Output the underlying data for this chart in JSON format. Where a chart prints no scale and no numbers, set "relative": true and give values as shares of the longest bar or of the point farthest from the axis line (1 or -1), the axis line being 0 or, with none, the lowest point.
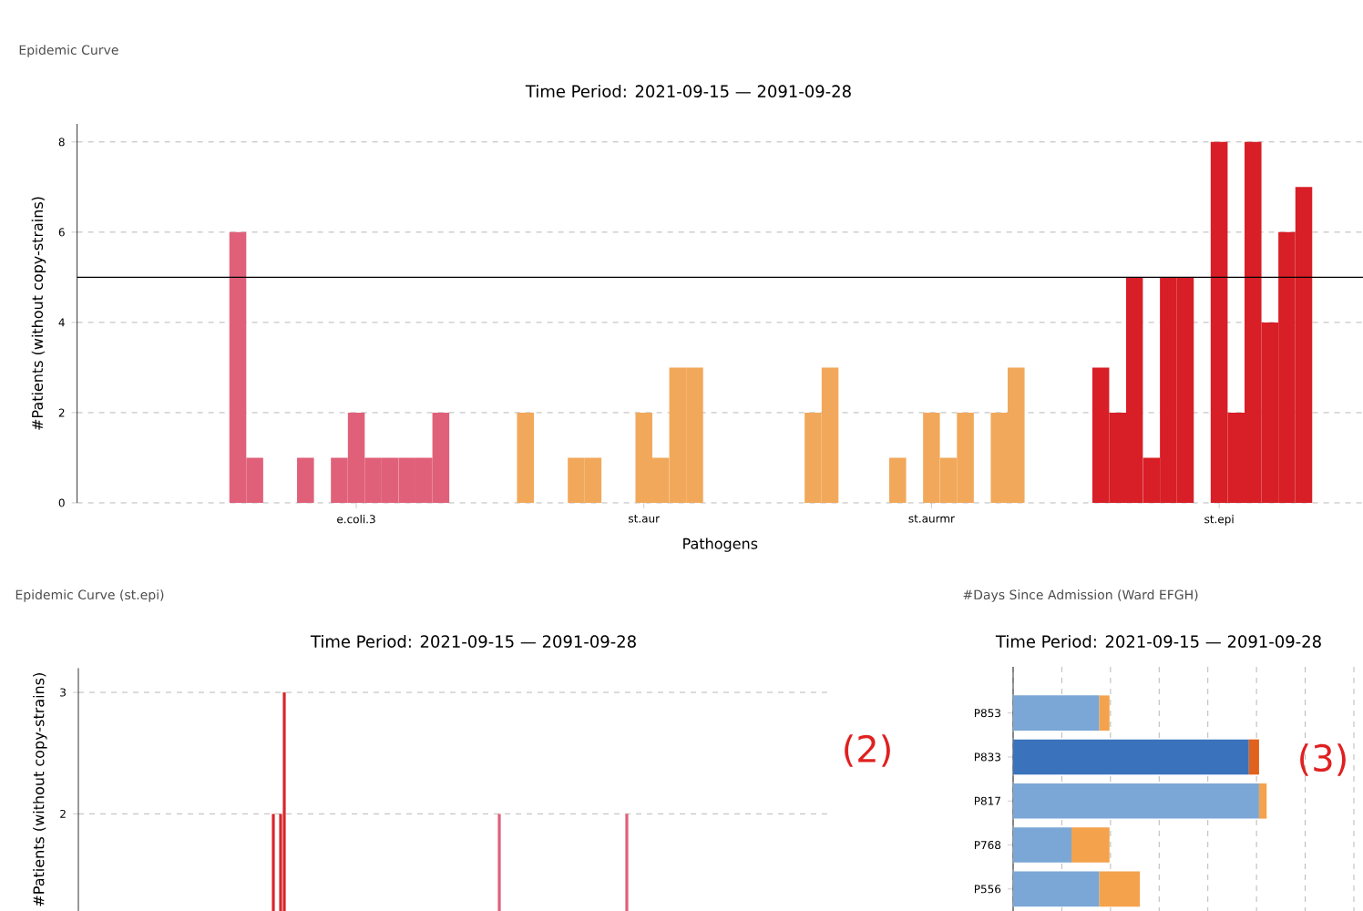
{
  "chart_data": [
    {
      "type": "bar",
      "title": "Epidemic Curve",
      "subtitle": "Time Period: 2021-09-15 — 2091-09-28",
      "xlabel": "Pathogens",
      "ylabel": "#Patients (without copy-strains)",
      "categories": [
        null,
        null,
        null,
        null,
        null,
        null,
        null,
        null,
        null,
        null,
        null,
        null,
        null,
        null,
        null,
        null,
        "e.coli.3",
        null,
        null,
        null,
        null,
        null,
        null,
        null,
        null,
        null,
        null,
        null,
        null,
        null,
        null,
        null,
        null,
        "st.aur",
        null,
        null,
        null,
        null,
        null,
        null,
        null,
        null,
        null,
        null,
        null,
        null,
        null,
        null,
        null,
        null,
        "st.aurmr",
        null,
        null,
        null,
        null,
        null,
        null,
        null,
        null,
        null,
        null,
        null,
        null,
        null,
        null,
        null,
        null,
        "st.epi",
        null,
        null,
        null,
        null,
        null,
        null,
        null,
        null
      ],
      "values": [
        null,
        null,
        null,
        null,
        null,
        null,
        null,
        null,
        null,
        6,
        1,
        0,
        0,
        1,
        0,
        1,
        2,
        1,
        1,
        1,
        1,
        2,
        0,
        null,
        null,
        null,
        2,
        0,
        0,
        1,
        1,
        0,
        0,
        2,
        1,
        3,
        3,
        0,
        0,
        0,
        null,
        null,
        null,
        2,
        3,
        0,
        0,
        0,
        1,
        0,
        2,
        1,
        2,
        0,
        2,
        3,
        0,
        null,
        null,
        null,
        3,
        2,
        5,
        1,
        5,
        5,
        0,
        8,
        2,
        8,
        4,
        6,
        7,
        0,
        null,
        null
      ],
      "colors": [
        null,
        null,
        null,
        null,
        null,
        null,
        null,
        null,
        null,
        "#e0607a",
        "#e0607a",
        "#e0607a",
        "#e0607a",
        "#e0607a",
        "#e0607a",
        "#e0607a",
        "#e0607a",
        "#e0607a",
        "#e0607a",
        "#e0607a",
        "#e0607a",
        "#e0607a",
        "#e0607a",
        null,
        null,
        null,
        "#f2a85a",
        "#f2a85a",
        "#f2a85a",
        "#f2a85a",
        "#f2a85a",
        "#f2a85a",
        "#f2a85a",
        "#f2a85a",
        "#f2a85a",
        "#f2a85a",
        "#f2a85a",
        "#f2a85a",
        "#f2a85a",
        "#f2a85a",
        null,
        null,
        null,
        "#f2a85a",
        "#f2a85a",
        "#f2a85a",
        "#f2a85a",
        "#f2a85a",
        "#f2a85a",
        "#f2a85a",
        "#f2a85a",
        "#f2a85a",
        "#f2a85a",
        "#f2a85a",
        "#f2a85a",
        "#f2a85a",
        "#f2a85a",
        null,
        null,
        null,
        "#d81e26",
        "#d81e26",
        "#d81e26",
        "#d81e26",
        "#d81e26",
        "#d81e26",
        "#d81e26",
        "#d81e26",
        "#d81e26",
        "#d81e26",
        "#d81e26",
        "#d81e26",
        "#d81e26",
        "#d81e26",
        null,
        null
      ],
      "ylim": [
        0,
        8.4
      ],
      "yticks": [
        0,
        2,
        4,
        6,
        8
      ],
      "grid": "y",
      "ref_lines": [
        {
          "axis": "y",
          "value": 5
        }
      ]
    },
    {
      "type": "bar",
      "title": "Epidemic Curve (st.epi)",
      "subtitle": "Time Period: 2021-09-15 — 2091-09-28",
      "ylabel": "#Patients (without copy-strains)",
      "categories": [
        null,
        null,
        null,
        null,
        null,
        null,
        null,
        null,
        null,
        null,
        null,
        null,
        null,
        null,
        null,
        null,
        null,
        null,
        null,
        null,
        null,
        null,
        null,
        null,
        null,
        null,
        null,
        null,
        null,
        null,
        null,
        null,
        null,
        null,
        null,
        null,
        null,
        null,
        null,
        null,
        null,
        null,
        null,
        null,
        null,
        null,
        null,
        null,
        null,
        null,
        null,
        null,
        null,
        null,
        null,
        null,
        null,
        null,
        null,
        null,
        null,
        null,
        null,
        null,
        null,
        null,
        null,
        null,
        null,
        null,
        null,
        null,
        null,
        null,
        null,
        null,
        null,
        null,
        null,
        null,
        null,
        null,
        null,
        null,
        null,
        null,
        null,
        null,
        null,
        null,
        null,
        null,
        null,
        null,
        null,
        null,
        null,
        null,
        null,
        null,
        null,
        null,
        null,
        null,
        null,
        null,
        null,
        null,
        null,
        null,
        null,
        null,
        null,
        null,
        null,
        null,
        null,
        null,
        null,
        null,
        null,
        null,
        null,
        null,
        null,
        null,
        null,
        null,
        null,
        null,
        null,
        null,
        null,
        null,
        null,
        null,
        null,
        null,
        null,
        null,
        null,
        null,
        null,
        null,
        null,
        null,
        null,
        null,
        null,
        null,
        null,
        null,
        null,
        null,
        null,
        null,
        null,
        null,
        null,
        null,
        null,
        null,
        null,
        null,
        null,
        null,
        null,
        null,
        null,
        null,
        null,
        null,
        null,
        null,
        null,
        null,
        null,
        null,
        null,
        null,
        null,
        null,
        null,
        null,
        null,
        null,
        null,
        null,
        null,
        null,
        null,
        null,
        null,
        null,
        null,
        null,
        null,
        null,
        null,
        null,
        null,
        null,
        null,
        null,
        null,
        null,
        null
      ],
      "values": [
        null,
        null,
        null,
        null,
        null,
        null,
        null,
        null,
        null,
        null,
        null,
        null,
        null,
        null,
        null,
        null,
        null,
        null,
        null,
        null,
        null,
        null,
        null,
        null,
        null,
        null,
        null,
        null,
        null,
        null,
        null,
        null,
        null,
        null,
        null,
        null,
        null,
        null,
        null,
        null,
        null,
        null,
        null,
        null,
        null,
        null,
        null,
        null,
        null,
        null,
        null,
        null,
        null,
        2,
        null,
        2,
        3,
        null,
        null,
        null,
        null,
        null,
        null,
        null,
        null,
        null,
        null,
        null,
        null,
        null,
        null,
        null,
        null,
        null,
        null,
        null,
        null,
        null,
        null,
        null,
        null,
        null,
        null,
        null,
        null,
        null,
        null,
        null,
        null,
        null,
        null,
        null,
        null,
        null,
        null,
        null,
        null,
        null,
        null,
        null,
        null,
        null,
        null,
        null,
        null,
        null,
        null,
        null,
        null,
        null,
        null,
        null,
        null,
        null,
        null,
        2,
        null,
        null,
        null,
        null,
        null,
        null,
        null,
        null,
        null,
        null,
        null,
        null,
        null,
        null,
        null,
        null,
        null,
        null,
        null,
        null,
        null,
        null,
        null,
        null,
        null,
        null,
        null,
        null,
        null,
        null,
        null,
        null,
        null,
        null,
        2,
        null,
        null,
        null,
        null,
        null,
        null,
        null,
        null,
        null,
        null,
        null,
        null,
        null,
        null,
        null,
        null,
        null,
        null,
        null,
        null,
        null,
        null,
        null,
        null,
        null,
        null,
        null,
        null,
        null,
        null,
        null,
        null,
        null,
        null,
        null,
        null,
        null,
        null,
        null,
        null,
        null,
        null,
        null,
        null,
        null,
        null,
        null,
        null,
        null,
        null,
        null,
        null,
        null,
        null,
        null,
        null
      ],
      "colors": [
        null,
        null,
        null,
        null,
        null,
        null,
        null,
        null,
        null,
        null,
        null,
        null,
        null,
        null,
        null,
        null,
        null,
        null,
        null,
        null,
        null,
        null,
        null,
        null,
        null,
        null,
        null,
        null,
        null,
        null,
        null,
        null,
        null,
        null,
        null,
        null,
        null,
        null,
        null,
        null,
        null,
        null,
        null,
        null,
        null,
        null,
        null,
        null,
        null,
        null,
        null,
        null,
        null,
        "#d7262b",
        null,
        "#d7262b",
        "#d7262b",
        null,
        null,
        null,
        null,
        null,
        null,
        null,
        null,
        null,
        null,
        null,
        null,
        null,
        null,
        null,
        null,
        null,
        null,
        null,
        null,
        null,
        null,
        null,
        null,
        null,
        null,
        null,
        null,
        null,
        null,
        null,
        null,
        null,
        null,
        null,
        null,
        null,
        null,
        null,
        null,
        null,
        null,
        null,
        null,
        null,
        null,
        null,
        null,
        null,
        null,
        null,
        null,
        null,
        null,
        null,
        null,
        null,
        null,
        "#e0607a",
        null,
        null,
        null,
        null,
        null,
        null,
        null,
        null,
        null,
        null,
        null,
        null,
        null,
        null,
        null,
        null,
        null,
        null,
        null,
        null,
        null,
        null,
        null,
        null,
        null,
        null,
        null,
        null,
        null,
        null,
        null,
        null,
        null,
        null,
        "#e0607a",
        null,
        null,
        null,
        null,
        null,
        null,
        null,
        null,
        null,
        null,
        null,
        null,
        null,
        null,
        null,
        null,
        null,
        null,
        null,
        null,
        null,
        null,
        null,
        null,
        null,
        null,
        null,
        null,
        null,
        null,
        null,
        null,
        null,
        null,
        null,
        null,
        null,
        null,
        null,
        null,
        null,
        null,
        null,
        null,
        null,
        null,
        null,
        null,
        null,
        null,
        null,
        null,
        null,
        null,
        null,
        null
      ],
      "ylim": [
        1.2,
        3.2
      ],
      "yticks": [
        2,
        3
      ],
      "grid": "y",
      "annotations": [
        "(2)"
      ]
    },
    {
      "type": "bar",
      "orientation": "horizontal",
      "stacked": true,
      "relative": true,
      "title": "#Days Since Admission (Ward EFGH)",
      "subtitle": "Time Period: 2021-09-15 — 2091-09-28",
      "categories": [
        "P853",
        "P833",
        "P817",
        "P768",
        "P556"
      ],
      "series": [
        {
          "colors": [
            "#7aa7d6",
            "#3a72bb",
            "#7aa7d6",
            "#7aa7d6",
            "#7aa7d6"
          ],
          "values": [
            0.34,
            0.93,
            0.97,
            0.23,
            0.34
          ]
        },
        {
          "colors": [
            "#f4a24c",
            "#e0621c",
            "#f4a24c",
            "#f4a24c",
            "#f4a24c"
          ],
          "values": [
            0.04,
            0.04,
            0.03,
            0.15,
            0.16
          ]
        }
      ],
      "grid": "x",
      "annotations": [
        "(3)"
      ]
    }
  ]
}
